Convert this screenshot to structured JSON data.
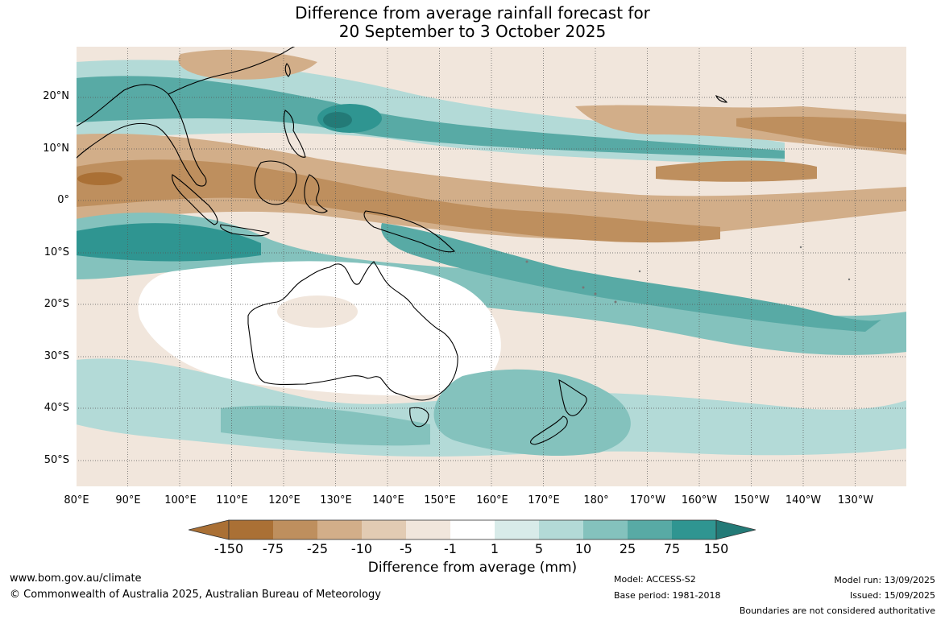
{
  "title_line1": "Difference from average rainfall forecast for",
  "title_line2": "20 September to 3 October 2025",
  "lat_labels": [
    "20°N",
    "10°N",
    "0°",
    "10°S",
    "20°S",
    "30°S",
    "40°S",
    "50°S"
  ],
  "lon_labels": [
    "80°E",
    "90°E",
    "100°E",
    "110°E",
    "120°E",
    "130°E",
    "140°E",
    "150°E",
    "160°E",
    "170°E",
    "180°",
    "170°W",
    "160°W",
    "150°W",
    "140°W",
    "130°W"
  ],
  "legend": {
    "ticks": [
      "-150",
      "-75",
      "-25",
      "-10",
      "-5",
      "-1",
      "1",
      "5",
      "10",
      "25",
      "75",
      "150"
    ],
    "colors": [
      "#aa7035",
      "#be8f5e",
      "#d2ae89",
      "#e2cbb3",
      "#f1e6dc",
      "#ffffff",
      "#d8ebe9",
      "#b3dad7",
      "#84c2bd",
      "#58aaa5",
      "#2f9591",
      "#237a77"
    ],
    "title": "Difference from average (mm)"
  },
  "footer": {
    "website": "www.bom.gov.au/climate",
    "copyright": "© Commonwealth of Australia 2025, Australian Bureau of Meteorology",
    "model": "Model: ACCESS-S2",
    "base_period": "Base period: 1981-2018",
    "model_run": "Model run: 13/09/2025",
    "issued": "Issued: 15/09/2025",
    "boundaries": "Boundaries are not considered authoritative"
  }
}
